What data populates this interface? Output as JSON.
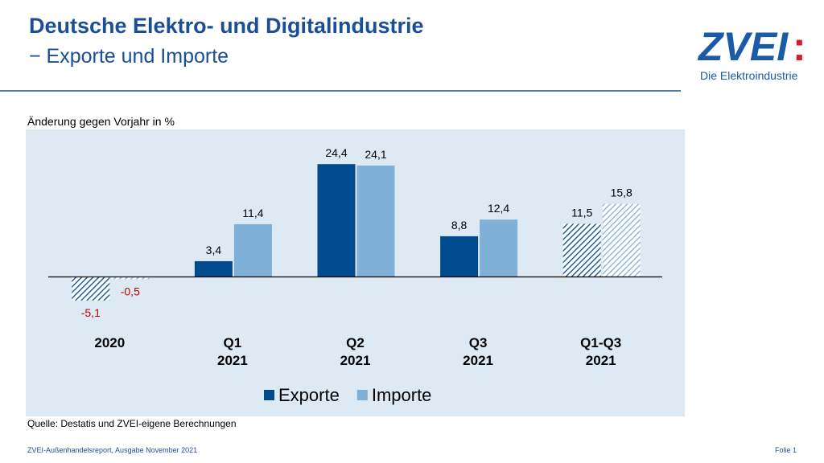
{
  "header": {
    "title": "Deutsche Elektro- und Digitalindustrie",
    "subtitle": "− Exporte und Importe"
  },
  "logo": {
    "name": "ZVEI",
    "mark": ":",
    "tagline": "Die Elektroindustrie"
  },
  "footer": {
    "left": "ZVEI-Außenhandelsreport, Ausgabe November 2021",
    "right": "Folie 1"
  },
  "chart_data": {
    "type": "bar",
    "ylabel": "Änderung gegen Vorjahr in %",
    "source": "Quelle: Destatis und ZVEI-eigene Berechnungen",
    "categories": [
      "2020",
      "Q1\n2021",
      "Q2\n2021",
      "Q3\n2021",
      "Q1-Q3\n2021"
    ],
    "hatched": [
      true,
      false,
      false,
      false,
      true
    ],
    "series": [
      {
        "name": "Exporte",
        "color": "#004a8f",
        "values": [
          -5.1,
          3.4,
          24.4,
          8.8,
          11.5
        ],
        "value_labels": [
          "-5,1",
          "3,4",
          "24,4",
          "8,8",
          "11,5"
        ]
      },
      {
        "name": "Importe",
        "color": "#7fb0d8",
        "values": [
          -0.5,
          11.4,
          24.1,
          12.4,
          15.8
        ],
        "value_labels": [
          "-0,5",
          "11,4",
          "24,1",
          "12,4",
          "15,8"
        ]
      }
    ],
    "negative_label_color": "#c00000",
    "ylim": [
      -6,
      30
    ],
    "grid": false,
    "legend": "bottom"
  }
}
